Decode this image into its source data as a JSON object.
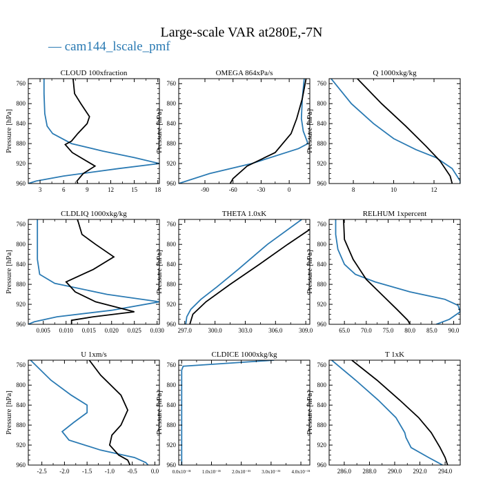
{
  "figure": {
    "title": "Large-scale VAR at280E,-7N",
    "legend_entry": "cam144_lscale_pmf",
    "legend_symbol": "—",
    "ylabel": "Pressure [hPa]"
  },
  "colors": {
    "series_blue": "#2a7ab3",
    "series_black": "#000000"
  },
  "chart_data": [
    {
      "type": "line",
      "title": "CLOUD 100xfraction",
      "ylabel": "Pressure [hPa]",
      "xlim": [
        1.5,
        18.2
      ],
      "ylim": [
        960,
        750
      ],
      "yticks": [
        760,
        800,
        840,
        880,
        920,
        960
      ],
      "xticks": [
        3,
        6,
        9,
        12,
        15,
        18
      ],
      "xticklabels": [
        "3",
        "6",
        "9",
        "12",
        "15",
        "18"
      ],
      "series": [
        {
          "name": "cam144_lscale_pmf",
          "color": "#2a7ab3",
          "points": [
            [
              3.5,
              750
            ],
            [
              3.5,
              780
            ],
            [
              3.6,
              820
            ],
            [
              3.9,
              845
            ],
            [
              4.6,
              860
            ],
            [
              7,
              880
            ],
            [
              11,
              895
            ],
            [
              15,
              908
            ],
            [
              18.2,
              920
            ],
            [
              13,
              930
            ],
            [
              6,
              945
            ],
            [
              2.5,
              955
            ],
            [
              1.5,
              960
            ]
          ]
        },
        {
          "points": [
            [
              7.2,
              750
            ],
            [
              7.4,
              780
            ],
            [
              8.2,
              800
            ],
            [
              9.3,
              826
            ],
            [
              9,
              840
            ],
            [
              7.8,
              860
            ],
            [
              7,
              875
            ],
            [
              6.2,
              882
            ],
            [
              7.1,
              898
            ],
            [
              10,
              925
            ],
            [
              8.5,
              940
            ],
            [
              7.7,
              955
            ],
            [
              7.8,
              960
            ]
          ]
        }
      ]
    },
    {
      "type": "line",
      "title": "OMEGA 864xPa/s",
      "ylabel": "Pressure [hPa]",
      "xlim": [
        -118,
        22
      ],
      "ylim": [
        960,
        750
      ],
      "yticks": [
        760,
        800,
        840,
        880,
        920,
        960
      ],
      "xticks": [
        -90,
        -60,
        -30,
        0
      ],
      "xticklabels": [
        "-90",
        "-60",
        "-30",
        "0"
      ],
      "series": [
        {
          "name": "cam144_lscale_pmf",
          "color": "#2a7ab3",
          "points": [
            [
              16,
              750
            ],
            [
              14,
              790
            ],
            [
              13,
              830
            ],
            [
              15,
              855
            ],
            [
              20,
              880
            ],
            [
              10,
              890
            ],
            [
              -40,
              920
            ],
            [
              -85,
              940
            ],
            [
              -118,
              960
            ]
          ]
        },
        {
          "points": [
            [
              18,
              750
            ],
            [
              14,
              790
            ],
            [
              8,
              830
            ],
            [
              2,
              860
            ],
            [
              -15,
              898
            ],
            [
              -45,
              925
            ],
            [
              -60,
              950
            ],
            [
              -63,
              960
            ]
          ]
        }
      ]
    },
    {
      "type": "line",
      "title": "Q 1000xkg/kg",
      "ylabel": "Pressure [hPa]",
      "xlim": [
        6.8,
        13.3
      ],
      "ylim": [
        960,
        750
      ],
      "yticks": [
        760,
        800,
        840,
        880,
        920,
        960
      ],
      "xticks": [
        8,
        10,
        12
      ],
      "xticklabels": [
        "8",
        "10",
        "12"
      ],
      "series": [
        {
          "name": "cam144_lscale_pmf",
          "color": "#2a7ab3",
          "points": [
            [
              6.9,
              750
            ],
            [
              7.9,
              800
            ],
            [
              9,
              840
            ],
            [
              10,
              870
            ],
            [
              11.1,
              892
            ],
            [
              12.1,
              908
            ],
            [
              12.9,
              930
            ],
            [
              13.3,
              955
            ],
            [
              13.3,
              960
            ]
          ]
        },
        {
          "points": [
            [
              8.2,
              750
            ],
            [
              9.4,
              800
            ],
            [
              10.6,
              845
            ],
            [
              11.6,
              885
            ],
            [
              12.3,
              915
            ],
            [
              12.8,
              945
            ],
            [
              12.9,
              960
            ]
          ]
        }
      ]
    },
    {
      "type": "line",
      "title": "CLDLIQ 1000xkg/kg",
      "ylabel": "Pressure [hPa]",
      "xlim": [
        0.0017,
        0.0305
      ],
      "ylim": [
        960,
        750
      ],
      "yticks": [
        760,
        800,
        840,
        880,
        920,
        960
      ],
      "xticks": [
        0.005,
        0.01,
        0.015,
        0.02,
        0.025,
        0.03
      ],
      "xticklabels": [
        "0.005",
        "0.010",
        "0.015",
        "0.020",
        "0.025",
        "0.030"
      ],
      "series": [
        {
          "name": "cam144_lscale_pmf",
          "color": "#2a7ab3",
          "points": [
            [
              0.0037,
              750
            ],
            [
              0.0037,
              790
            ],
            [
              0.0037,
              830
            ],
            [
              0.0042,
              860
            ],
            [
              0.0075,
              878
            ],
            [
              0.019,
              900
            ],
            [
              0.0305,
              915
            ],
            [
              0.02,
              932
            ],
            [
              0.008,
              945
            ],
            [
              0.003,
              955
            ],
            [
              0.0017,
              960
            ]
          ]
        },
        {
          "points": [
            [
              0.0125,
              750
            ],
            [
              0.0135,
              780
            ],
            [
              0.0165,
              800
            ],
            [
              0.0205,
              825
            ],
            [
              0.016,
              850
            ],
            [
              0.01,
              875
            ],
            [
              0.012,
              895
            ],
            [
              0.0165,
              915
            ],
            [
              0.025,
              935
            ],
            [
              0.016,
              945
            ],
            [
              0.0112,
              952
            ],
            [
              0.0112,
              960
            ]
          ]
        }
      ]
    },
    {
      "type": "line",
      "title": "THETA 1.0xK",
      "ylabel": "Pressure [hPa]",
      "xlim": [
        296.4,
        309.4
      ],
      "ylim": [
        960,
        750
      ],
      "yticks": [
        760,
        800,
        840,
        880,
        920,
        960
      ],
      "xticks": [
        297.0,
        300.0,
        303.0,
        306.0,
        309.0
      ],
      "xticklabels": [
        "297.0",
        "300.0",
        "303.0",
        "306.0",
        "309.0"
      ],
      "series": [
        {
          "name": "cam144_lscale_pmf",
          "color": "#2a7ab3",
          "points": [
            [
              308.6,
              750
            ],
            [
              305.2,
              800
            ],
            [
              302.3,
              850
            ],
            [
              300.2,
              885
            ],
            [
              298.6,
              910
            ],
            [
              297.6,
              930
            ],
            [
              297.2,
              945
            ],
            [
              297.1,
              960
            ]
          ]
        },
        {
          "points": [
            [
              309.4,
              770
            ],
            [
              307.2,
              800
            ],
            [
              304.4,
              840
            ],
            [
              301.5,
              880
            ],
            [
              299.1,
              915
            ],
            [
              297.8,
              940
            ],
            [
              297.5,
              960
            ]
          ]
        }
      ]
    },
    {
      "type": "line",
      "title": "RELHUM 1xpercent",
      "ylabel": "Pressure [hPa]",
      "xlim": [
        61.5,
        91.5
      ],
      "ylim": [
        960,
        750
      ],
      "yticks": [
        760,
        800,
        840,
        880,
        920,
        960
      ],
      "xticks": [
        65.0,
        70.0,
        75.0,
        80.0,
        85.0,
        90.0
      ],
      "xticklabels": [
        "65.0",
        "70.0",
        "75.0",
        "80.0",
        "85.0",
        "90.0"
      ],
      "series": [
        {
          "name": "cam144_lscale_pmf",
          "color": "#2a7ab3",
          "points": [
            [
              63,
              750
            ],
            [
              63,
              780
            ],
            [
              63.5,
              810
            ],
            [
              65,
              840
            ],
            [
              67.5,
              860
            ],
            [
              72,
              875
            ],
            [
              80,
              895
            ],
            [
              88,
              910
            ],
            [
              91,
              922
            ],
            [
              91.5,
              935
            ],
            [
              89,
              950
            ],
            [
              86,
              960
            ]
          ]
        },
        {
          "points": [
            [
              64.8,
              750
            ],
            [
              65,
              790
            ],
            [
              67,
              830
            ],
            [
              70,
              870
            ],
            [
              73.5,
              900
            ],
            [
              77,
              930
            ],
            [
              79.5,
              952
            ],
            [
              80,
              960
            ]
          ]
        }
      ]
    },
    {
      "type": "line",
      "title": "U 1xm/s",
      "ylabel": "Pressure [hPa]",
      "xlim": [
        -2.8,
        0.1
      ],
      "ylim": [
        960,
        750
      ],
      "yticks": [
        760,
        800,
        840,
        880,
        920,
        960
      ],
      "xticks": [
        -2.5,
        -2.0,
        -1.5,
        -1.0,
        -0.5,
        0.0
      ],
      "xticklabels": [
        "-2.5",
        "-2.0",
        "-1.5",
        "-1.0",
        "-0.5",
        "0.0"
      ],
      "series": [
        {
          "name": "cam144_lscale_pmf",
          "color": "#2a7ab3",
          "points": [
            [
              -2.75,
              750
            ],
            [
              -2.3,
              790
            ],
            [
              -1.85,
              820
            ],
            [
              -1.5,
              840
            ],
            [
              -1.5,
              855
            ],
            [
              -1.8,
              875
            ],
            [
              -2.05,
              893
            ],
            [
              -1.9,
              910
            ],
            [
              -1.2,
              930
            ],
            [
              -0.45,
              945
            ],
            [
              -0.2,
              955
            ],
            [
              -0.15,
              960
            ]
          ]
        },
        {
          "points": [
            [
              -1.45,
              750
            ],
            [
              -1.2,
              780
            ],
            [
              -0.75,
              820
            ],
            [
              -0.6,
              850
            ],
            [
              -0.75,
              880
            ],
            [
              -0.95,
              900
            ],
            [
              -1.0,
              920
            ],
            [
              -0.8,
              940
            ],
            [
              -0.6,
              950
            ],
            [
              -0.55,
              960
            ]
          ]
        }
      ]
    },
    {
      "type": "line",
      "title": "CLDICE 1000xkg/kg",
      "ylabel": "Pressure [hPa]",
      "xlim": [
        -1e-32,
        4.3e-31
      ],
      "ylim": [
        960,
        750
      ],
      "yticks": [
        760,
        800,
        840,
        880,
        920,
        960
      ],
      "xticks": [
        0,
        1e-31,
        2e-31,
        3e-31,
        4e-31
      ],
      "xticklabels": [
        "0.0x10⁻³¹",
        "1.0x10⁻³¹",
        "2.0x10⁻³¹",
        "3.0x10⁻³¹",
        "4.0x10⁻³¹"
      ],
      "series": [
        {
          "name": "cam144_lscale_pmf",
          "color": "#2a7ab3",
          "points": [
            [
              3.1e-31,
              750
            ],
            [
              5e-33,
              762
            ],
            [
              0.0,
              770
            ],
            [
              0.0,
              960
            ]
          ]
        }
      ]
    },
    {
      "type": "line",
      "title": "T 1xK",
      "ylabel": "Pressure [hPa]",
      "xlim": [
        284.8,
        295.2
      ],
      "ylim": [
        960,
        750
      ],
      "yticks": [
        760,
        800,
        840,
        880,
        920,
        960
      ],
      "xticks": [
        286.0,
        288.0,
        290.0,
        292.0,
        294.0
      ],
      "xticklabels": [
        "286.0",
        "288.0",
        "290.0",
        "292.0",
        "294.0"
      ],
      "series": [
        {
          "name": "cam144_lscale_pmf",
          "color": "#2a7ab3",
          "points": [
            [
              285,
              750
            ],
            [
              286.9,
              790
            ],
            [
              288.7,
              830
            ],
            [
              290.1,
              865
            ],
            [
              290.8,
              895
            ],
            [
              290.9,
              905
            ],
            [
              291.3,
              925
            ],
            [
              292.7,
              945
            ],
            [
              293.8,
              960
            ]
          ]
        },
        {
          "points": [
            [
              286.6,
              750
            ],
            [
              288.6,
              790
            ],
            [
              290.4,
              830
            ],
            [
              291.9,
              865
            ],
            [
              292.9,
              895
            ],
            [
              293.6,
              925
            ],
            [
              294.0,
              945
            ],
            [
              294.2,
              960
            ]
          ]
        }
      ]
    }
  ]
}
